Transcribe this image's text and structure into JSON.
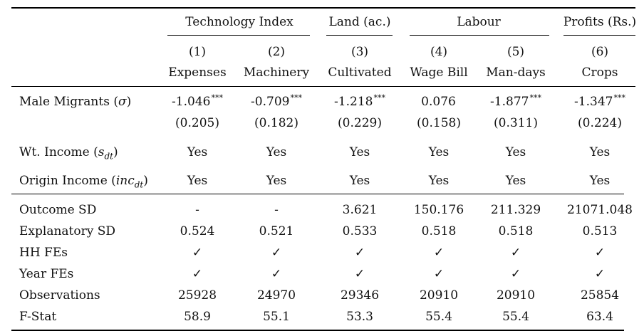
{
  "groups": [
    {
      "label": "Technology Index"
    },
    {
      "label": "Land (ac.)"
    },
    {
      "label": "Labour"
    },
    {
      "label": "Profits (Rs.)"
    }
  ],
  "columns": [
    {
      "num": "(1)",
      "name": "Expenses"
    },
    {
      "num": "(2)",
      "name": "Machinery"
    },
    {
      "num": "(3)",
      "name": "Cultivated"
    },
    {
      "num": "(4)",
      "name": "Wage Bill"
    },
    {
      "num": "(5)",
      "name": "Man-days"
    },
    {
      "num": "(6)",
      "name": "Crops"
    }
  ],
  "male_migrants": {
    "label_text": "Male Migrants (",
    "label_sym": "σ",
    "label_close": ")",
    "coef": [
      "-1.046",
      "-0.709",
      "-1.218",
      "0.076",
      "-1.877",
      "-1.347"
    ],
    "stars": [
      "***",
      "***",
      "***",
      "",
      "***",
      "***"
    ],
    "se": [
      "(0.205)",
      "(0.182)",
      "(0.229)",
      "(0.158)",
      "(0.311)",
      "(0.224)"
    ]
  },
  "wt_income": {
    "label_text": "Wt. Income (",
    "label_sym": "s",
    "label_sub": "dt",
    "label_close": ")",
    "values": [
      "Yes",
      "Yes",
      "Yes",
      "Yes",
      "Yes",
      "Yes"
    ]
  },
  "origin_income": {
    "label_text": "Origin Income (",
    "label_sym": "inc",
    "label_sub": "dt",
    "label_close": ")",
    "values": [
      "Yes",
      "Yes",
      "Yes",
      "Yes",
      "Yes",
      "Yes"
    ]
  },
  "stats": [
    {
      "label": "Outcome SD",
      "values": [
        "-",
        "-",
        "3.621",
        "150.176",
        "211.329",
        "21071.048"
      ]
    },
    {
      "label": "Explanatory SD",
      "values": [
        "0.524",
        "0.521",
        "0.533",
        "0.518",
        "0.518",
        "0.513"
      ]
    },
    {
      "label": "HH FEs",
      "values": [
        "✓",
        "✓",
        "✓",
        "✓",
        "✓",
        "✓"
      ]
    },
    {
      "label": "Year FEs",
      "values": [
        "✓",
        "✓",
        "✓",
        "✓",
        "✓",
        "✓"
      ]
    },
    {
      "label": "Observations",
      "values": [
        "25928",
        "24970",
        "29346",
        "20910",
        "20910",
        "25854"
      ]
    },
    {
      "label": "F-Stat",
      "values": [
        "58.9",
        "55.1",
        "53.3",
        "55.4",
        "55.4",
        "63.4"
      ]
    }
  ]
}
